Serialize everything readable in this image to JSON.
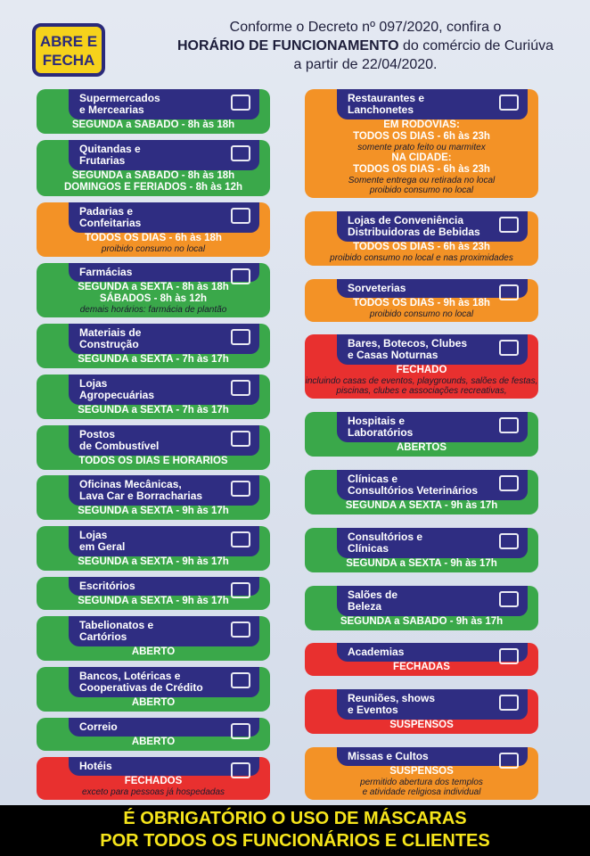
{
  "header": {
    "logo": [
      "ABRE E",
      "FECHA"
    ],
    "title": {
      "line1": "Conforme o Decreto nº 097/2020, confira o",
      "line2_bold": "HORÁRIO DE FUNCIONAMENTO",
      "line2_rest": " do comércio de Curiúva",
      "line3": "a partir de 22/04/2020."
    }
  },
  "columns": [
    [
      {
        "name": [
          "Supermercados",
          "e Mercearias"
        ],
        "color": "#3aa84a",
        "sections": [
          {
            "status": [
              "SEGUNDA a SÁBADO - 8h às 18h"
            ]
          }
        ]
      },
      {
        "name": [
          "Quitandas e",
          "Frutarias"
        ],
        "color": "#3aa84a",
        "sections": [
          {
            "status": [
              "SEGUNDA a SÁBADO - 8h às 18h",
              "DOMINGOS E FERIADOS - 8h às 12h"
            ]
          }
        ]
      },
      {
        "name": [
          "Padarias e",
          "Confeitarias"
        ],
        "color": "#f39226",
        "sections": [
          {
            "status": [
              "TODOS OS DIAS - 6h às 18h"
            ],
            "notes": [
              "proibido consumo no local"
            ]
          }
        ]
      },
      {
        "name": [
          "Farmácias"
        ],
        "color": "#3aa84a",
        "sections": [
          {
            "status": [
              "SEGUNDA a SEXTA - 8h às 18h",
              "SÁBADOS - 8h às 12h"
            ],
            "notes": [
              "demais horários: farmácia de plantão"
            ]
          }
        ]
      },
      {
        "name": [
          "Materiais de",
          "Construção"
        ],
        "color": "#3aa84a",
        "sections": [
          {
            "status": [
              "SEGUNDA a SEXTA - 7h às 17h"
            ]
          }
        ]
      },
      {
        "name": [
          "Lojas",
          "Agropecuárias"
        ],
        "color": "#3aa84a",
        "sections": [
          {
            "status": [
              "SEGUNDA a SEXTA - 7h às 17h"
            ]
          }
        ]
      },
      {
        "name": [
          "Postos",
          "de Combustível"
        ],
        "color": "#3aa84a",
        "sections": [
          {
            "status": [
              "TODOS OS DIAS E HORÁRIOS"
            ]
          }
        ]
      },
      {
        "name": [
          "Oficinas Mecânicas,",
          "Lava Car e Borracharias"
        ],
        "color": "#3aa84a",
        "sections": [
          {
            "status": [
              "SEGUNDA a SEXTA - 9h às 17h"
            ]
          }
        ]
      },
      {
        "name": [
          "Lojas",
          "em Geral"
        ],
        "color": "#3aa84a",
        "sections": [
          {
            "status": [
              "SEGUNDA a SEXTA - 9h às 17h"
            ]
          }
        ]
      },
      {
        "name": [
          "Escritórios"
        ],
        "color": "#3aa84a",
        "sections": [
          {
            "status": [
              "SEGUNDA a SEXTA - 9h às 17h"
            ]
          }
        ]
      },
      {
        "name": [
          "Tabelionatos e",
          "Cartórios"
        ],
        "color": "#3aa84a",
        "sections": [
          {
            "status": [
              "ABERTO"
            ]
          }
        ]
      },
      {
        "name": [
          "Bancos, Lotéricas e",
          "Cooperativas de Crédito"
        ],
        "color": "#3aa84a",
        "sections": [
          {
            "status": [
              "ABERTO"
            ]
          }
        ]
      },
      {
        "name": [
          "Correio"
        ],
        "color": "#3aa84a",
        "sections": [
          {
            "status": [
              "ABERTO"
            ]
          }
        ]
      },
      {
        "name": [
          "Hotéis"
        ],
        "color": "#e8302f",
        "sections": [
          {
            "status": [
              "FECHADOS"
            ],
            "notes": [
              "exceto para pessoas já hospedadas"
            ]
          }
        ]
      }
    ],
    [
      {
        "name": [
          "Restaurantes e",
          "Lanchonetes"
        ],
        "color": "#f39226",
        "sections": [
          {
            "status": [
              "EM RODOVIAS:",
              "TODOS OS DIAS  - 6h às 23h"
            ],
            "notes": [
              "somente prato feito ou marmitex"
            ]
          },
          {
            "status": [
              "NA CIDADE:",
              "TODOS OS DIAS - 6h às 23h"
            ],
            "notes": [
              "Somente entrega ou retirada no local",
              "proibido consumo no local"
            ]
          }
        ]
      },
      {
        "name": [
          "Lojas de Conveniência",
          "Distribuidoras de Bebidas"
        ],
        "color": "#f39226",
        "sections": [
          {
            "status": [
              "TODOS OS DIAS - 6h às 23h"
            ],
            "notes": [
              "proibido consumo no local e nas proximidades"
            ]
          }
        ]
      },
      {
        "name": [
          "Sorveterias"
        ],
        "color": "#f39226",
        "sections": [
          {
            "status": [
              "TODOS OS DIAS - 9h às 18h"
            ],
            "notes": [
              "proibido consumo no local"
            ]
          }
        ]
      },
      {
        "name": [
          "Bares, Botecos, Clubes",
          "e Casas Noturnas"
        ],
        "color": "#e8302f",
        "sections": [
          {
            "status": [
              "FECHADO"
            ],
            "notes": [
              "incluindo casas de eventos, playgrounds, salões de festas,",
              "piscinas, clubes e associações recreativas,"
            ]
          }
        ]
      },
      {
        "name": [
          "Hospitais e",
          "Laboratórios"
        ],
        "color": "#3aa84a",
        "sections": [
          {
            "status": [
              "ABERTOS"
            ]
          }
        ]
      },
      {
        "name": [
          "Clínicas e",
          "Consultórios Veterinários"
        ],
        "color": "#3aa84a",
        "sections": [
          {
            "status": [
              "SEGUNDA A SEXTA - 9h às 17h"
            ]
          }
        ]
      },
      {
        "name": [
          "Consultórios e",
          "Clínicas"
        ],
        "color": "#3aa84a",
        "sections": [
          {
            "status": [
              "SEGUNDA a SEXTA - 9h às 17h"
            ]
          }
        ]
      },
      {
        "name": [
          "Salões de",
          "Beleza"
        ],
        "color": "#3aa84a",
        "sections": [
          {
            "status": [
              "SEGUNDA a SÁBADO - 9h às 17h"
            ]
          }
        ]
      },
      {
        "name": [
          "Academias"
        ],
        "color": "#e8302f",
        "sections": [
          {
            "status": [
              "FECHADAS"
            ]
          }
        ]
      },
      {
        "name": [
          "Reuniões, shows",
          "e Eventos"
        ],
        "color": "#e8302f",
        "sections": [
          {
            "status": [
              "SUSPENSOS"
            ]
          }
        ]
      },
      {
        "name": [
          "Missas e Cultos"
        ],
        "color": "#f39226",
        "sections": [
          {
            "status": [
              "SUSPENSOS"
            ],
            "notes": [
              "permitido abertura dos templos",
              "e atividade religiosa individual"
            ]
          }
        ]
      }
    ]
  ],
  "footer": [
    "É OBRIGATÓRIO O USO DE MÁSCARAS",
    "POR TODOS OS FUNCIONÁRIOS E CLIENTES"
  ]
}
